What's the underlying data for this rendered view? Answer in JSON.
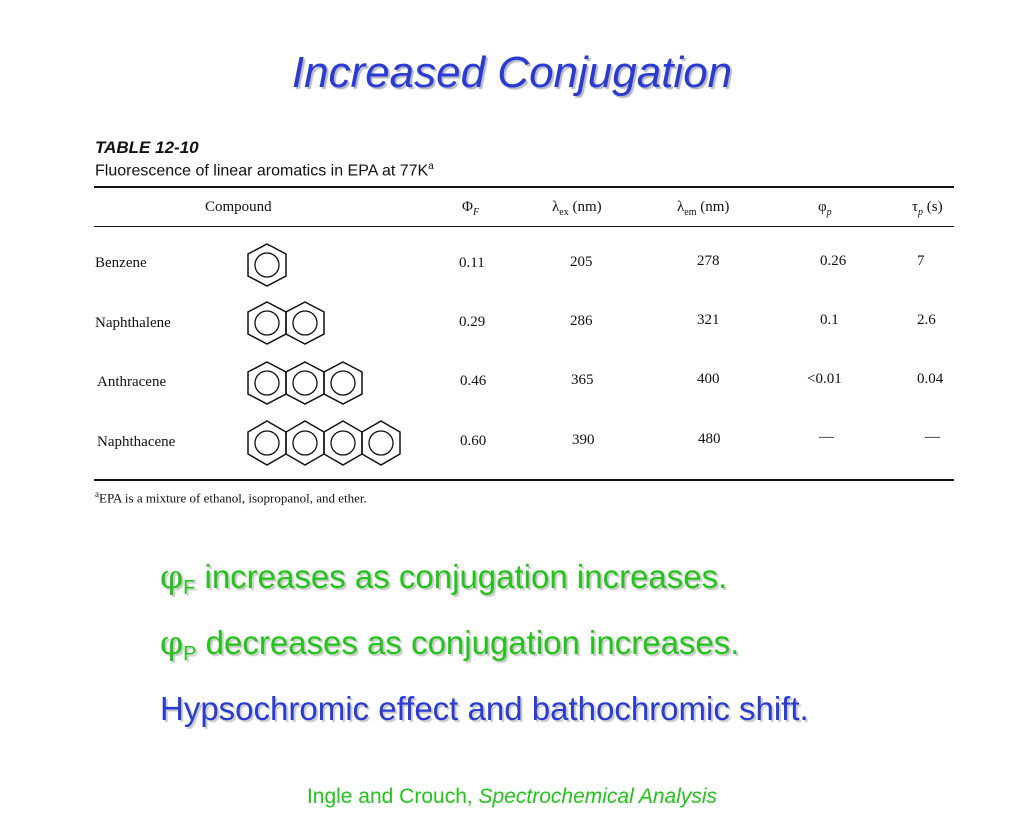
{
  "slide": {
    "title": "Increased Conjugation"
  },
  "table": {
    "number": "TABLE 12-10",
    "caption": "Fluorescence of linear aromatics in EPA at 77K",
    "caption_sup": "a",
    "headers": {
      "compound": "Compound",
      "phiF_symbol": "Φ",
      "phiF_sub": "F",
      "lex_symbol": "λ",
      "lex_sub": "ex",
      "lex_unit": "(nm)",
      "lem_symbol": "λ",
      "lem_sub": "em",
      "lem_unit": "(nm)",
      "phip_symbol": "φ",
      "phip_sub": "p",
      "tau_symbol": "τ",
      "tau_sub": "p",
      "tau_unit": "(s)"
    },
    "rows": [
      {
        "compound": "Benzene",
        "rings": 1,
        "phiF": "0.11",
        "lex": "205",
        "lem": "278",
        "phip": "0.26",
        "tau": "7"
      },
      {
        "compound": "Naphthalene",
        "rings": 2,
        "phiF": "0.29",
        "lex": "286",
        "lem": "321",
        "phip": "0.1",
        "tau": "2.6"
      },
      {
        "compound": "Anthracene",
        "rings": 3,
        "phiF": "0.46",
        "lex": "365",
        "lem": "400",
        "phip": "<0.01",
        "tau": "0.04"
      },
      {
        "compound": "Naphthacene",
        "rings": 4,
        "phiF": "0.60",
        "lex": "390",
        "lem": "480",
        "phip": "—",
        "tau": "—"
      }
    ],
    "footnote_sup": "a",
    "footnote": "EPA is a mixture of ethanol, isopropanol, and ether."
  },
  "bullets": [
    {
      "symbol": "φ",
      "sub": "F",
      "text": " increases as conjugation increases.",
      "color": "#22c41a"
    },
    {
      "symbol": "φ",
      "sub": "P",
      "text": " decreases as conjugation increases.",
      "color": "#22c41a"
    },
    {
      "text": "Hypsochromic effect and bathochromic shift.",
      "color": "#2a3bd3"
    }
  ],
  "citation": {
    "authors": "Ingle and Crouch, ",
    "title": "Spectrochemical Analysis"
  }
}
